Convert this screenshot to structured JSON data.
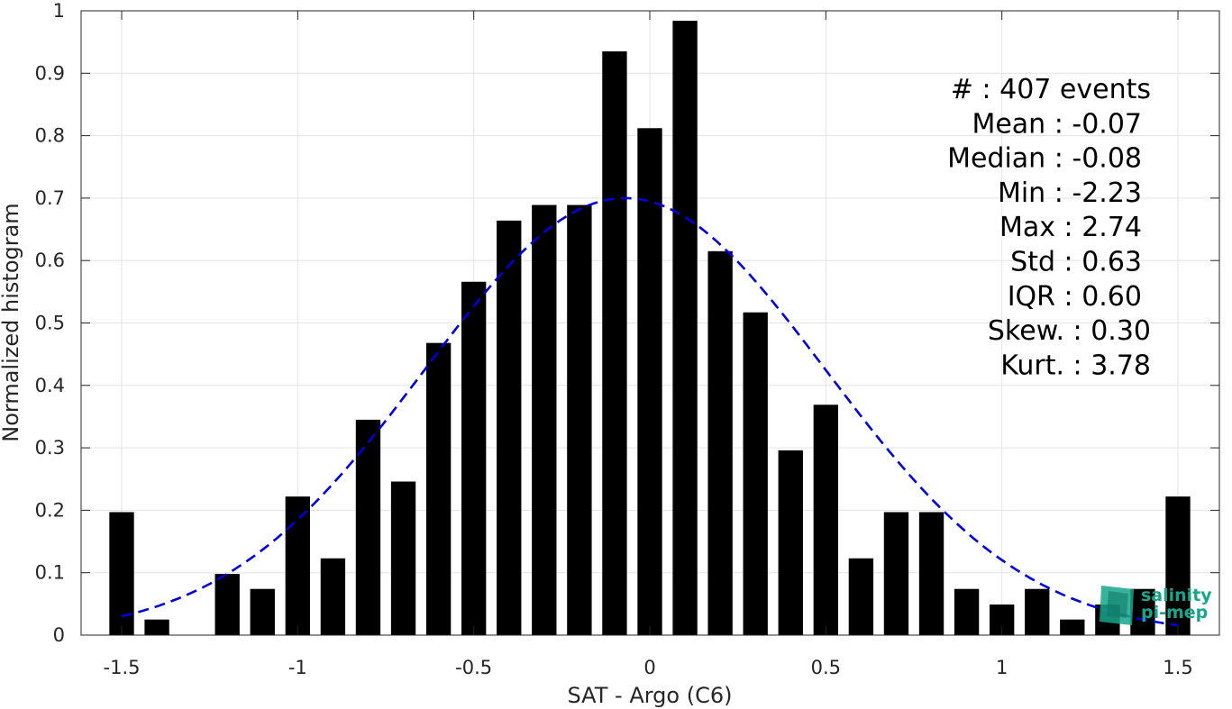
{
  "chart_data": {
    "type": "bar",
    "xlabel": "SAT - Argo (C6)",
    "ylabel": "Normalized histogram",
    "xlim": [
      -1.55,
      1.55
    ],
    "ylim": [
      0,
      1
    ],
    "grid": true,
    "x_ticks": [
      -1.5,
      -1,
      -0.5,
      0,
      0.5,
      1,
      1.5
    ],
    "x_tick_labels": [
      "-1.5",
      "-1",
      "-0.5",
      "0",
      "0.5",
      "1",
      "1.5"
    ],
    "y_ticks": [
      0,
      0.1,
      0.2,
      0.3,
      0.4,
      0.5,
      0.6,
      0.7,
      0.8,
      0.9,
      1
    ],
    "y_tick_labels": [
      "0",
      "0.1",
      "0.2",
      "0.3",
      "0.4",
      "0.5",
      "0.6",
      "0.7",
      "0.8",
      "0.9",
      "1"
    ],
    "bar_color": "#000000",
    "bar_width": 0.07,
    "x": [
      -1.5,
      -1.4,
      -1.3,
      -1.2,
      -1.1,
      -1.0,
      -0.9,
      -0.8,
      -0.7,
      -0.6,
      -0.5,
      -0.4,
      -0.3,
      -0.2,
      -0.1,
      0.0,
      0.1,
      0.2,
      0.3,
      0.4,
      0.5,
      0.6,
      0.7,
      0.8,
      0.9,
      1.0,
      1.1,
      1.2,
      1.3,
      1.4,
      1.5
    ],
    "values": [
      0.197,
      0.025,
      0.0,
      0.098,
      0.074,
      0.222,
      0.123,
      0.345,
      0.246,
      0.468,
      0.566,
      0.664,
      0.689,
      0.689,
      0.935,
      0.812,
      0.984,
      0.615,
      0.517,
      0.0,
      0.369,
      0.123,
      0.197,
      0.197,
      0.074,
      0.049,
      0.074,
      0.025,
      0.049,
      0.074,
      0.222
    ],
    "fit_curve": {
      "style": "dashed",
      "color": "#0000dd",
      "mean": -0.07,
      "std": 0.57,
      "peak": 0.7
    },
    "extra_bars": [
      {
        "x": 0.4,
        "value": 0.296
      }
    ],
    "stats": [
      {
        "key": "count",
        "text": "#  : 407 events"
      },
      {
        "key": "mean",
        "text": "Mean : -0.07"
      },
      {
        "key": "median",
        "text": "Median : -0.08"
      },
      {
        "key": "min",
        "text": "Min : -2.23"
      },
      {
        "key": "max",
        "text": "Max : 2.74"
      },
      {
        "key": "std",
        "text": "Std : 0.63"
      },
      {
        "key": "iqr",
        "text": "IQR : 0.60"
      },
      {
        "key": "skew",
        "text": "Skew. : 0.30"
      },
      {
        "key": "kurt",
        "text": "Kurt. : 3.78"
      }
    ]
  },
  "logo": {
    "line1": "salinity",
    "line2": "pi-mep",
    "color": "#17a68c"
  }
}
